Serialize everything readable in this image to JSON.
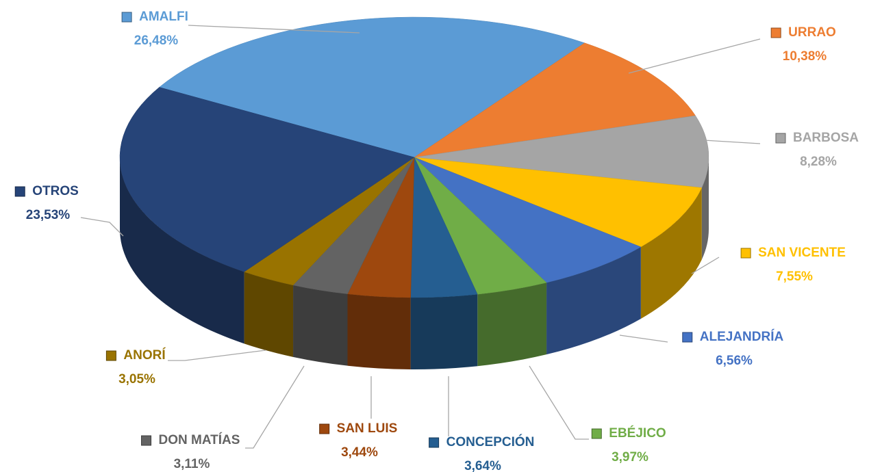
{
  "chart_data": {
    "type": "pie",
    "three_d": true,
    "categories": [
      "AMALFI",
      "URRAO",
      "BARBOSA",
      "SAN VICENTE",
      "ALEJANDRÍA",
      "EBÉJICO",
      "CONCEPCIÓN",
      "SAN LUIS",
      "DON MATÍAS",
      "ANORÍ",
      "OTROS"
    ],
    "values": [
      26.48,
      10.38,
      8.28,
      7.55,
      6.56,
      3.97,
      3.64,
      3.44,
      3.11,
      3.05,
      23.53
    ],
    "value_labels": [
      "26,48%",
      "10,38%",
      "8,28%",
      "7,55%",
      "6,56%",
      "3,97%",
      "3,64%",
      "3,44%",
      "3,11%",
      "3,05%",
      "23,53%"
    ],
    "colors": [
      "#5b9bd5",
      "#ed7d31",
      "#a5a5a5",
      "#ffc000",
      "#4472c4",
      "#70ad47",
      "#255e91",
      "#9e480e",
      "#636363",
      "#997300",
      "#264478"
    ]
  }
}
